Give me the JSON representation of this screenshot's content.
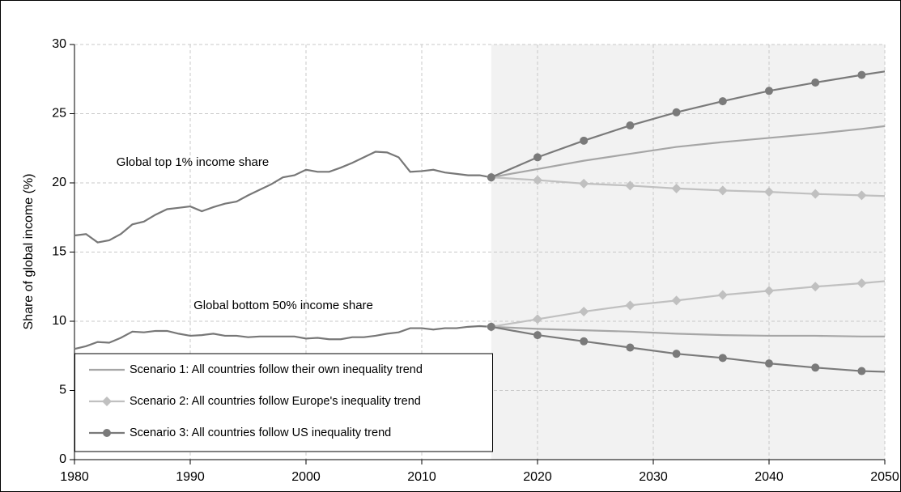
{
  "chart_data": {
    "type": "line",
    "ylabel": "Share of global income (%)",
    "annotations": [
      "Global top 1% income share",
      "Global bottom 50% income share"
    ],
    "xlim": [
      1980,
      2050
    ],
    "xticks": [
      1980,
      1990,
      2000,
      2010,
      2020,
      2030,
      2040,
      2050
    ],
    "ylim": [
      0,
      30
    ],
    "yticks": [
      0,
      5,
      10,
      15,
      20,
      25,
      30
    ],
    "grid": true,
    "legend": "lower left",
    "marker_step": 4,
    "shade_color": "#f2f2f2",
    "series": [
      {
        "color": "#777777",
        "marker": "none",
        "x": [
          1980,
          1981,
          1982,
          1983,
          1984,
          1985,
          1986,
          1987,
          1988,
          1989,
          1990,
          1991,
          1992,
          1993,
          1994,
          1995,
          1996,
          1997,
          1998,
          1999,
          2000,
          2001,
          2002,
          2003,
          2004,
          2005,
          2006,
          2007,
          2008,
          2009,
          2010,
          2011,
          2012,
          2013,
          2014,
          2015,
          2016
        ],
        "top": [
          16.2,
          16.3,
          15.7,
          15.85,
          16.3,
          17.0,
          17.2,
          17.7,
          18.1,
          18.2,
          18.3,
          17.95,
          18.25,
          18.5,
          18.65,
          19.1,
          19.5,
          19.9,
          20.4,
          20.55,
          20.95,
          20.8,
          20.8,
          21.1,
          21.45,
          21.85,
          22.25,
          22.2,
          21.85,
          20.8,
          20.85,
          20.95,
          20.75,
          20.65,
          20.55,
          20.55,
          20.4
        ],
        "bottom": [
          8.0,
          8.2,
          8.5,
          8.45,
          8.8,
          9.25,
          9.2,
          9.3,
          9.3,
          9.1,
          8.95,
          9.0,
          9.1,
          8.95,
          8.95,
          8.85,
          8.9,
          8.9,
          8.9,
          8.9,
          8.75,
          8.8,
          8.7,
          8.7,
          8.85,
          8.85,
          8.95,
          9.1,
          9.2,
          9.5,
          9.5,
          9.4,
          9.5,
          9.5,
          9.6,
          9.65,
          9.6
        ]
      },
      {
        "name": "Scenario 1: All countries follow their own inequality trend",
        "color": "#a6a6a6",
        "marker": "none",
        "x": [
          2016,
          2020,
          2024,
          2028,
          2032,
          2036,
          2040,
          2044,
          2048,
          2050
        ],
        "top": [
          20.4,
          21.0,
          21.6,
          22.1,
          22.6,
          22.95,
          23.25,
          23.55,
          23.9,
          24.1
        ],
        "bottom": [
          9.6,
          9.45,
          9.35,
          9.25,
          9.1,
          9.0,
          8.95,
          8.95,
          8.9,
          8.9
        ]
      },
      {
        "name": "Scenario 2: All countries follow Europe's inequality trend",
        "color": "#c0c0c0",
        "marker": "diamond",
        "x": [
          2016,
          2020,
          2024,
          2028,
          2032,
          2036,
          2040,
          2044,
          2048,
          2050
        ],
        "top": [
          20.4,
          20.2,
          19.95,
          19.8,
          19.6,
          19.45,
          19.35,
          19.2,
          19.1,
          19.05
        ],
        "bottom": [
          9.6,
          10.15,
          10.7,
          11.15,
          11.5,
          11.9,
          12.2,
          12.5,
          12.75,
          12.9
        ]
      },
      {
        "name": "Scenario 3: All countries follow US inequality trend",
        "color": "#7a7a7a",
        "marker": "circle",
        "x": [
          2016,
          2020,
          2024,
          2028,
          2032,
          2036,
          2040,
          2044,
          2048,
          2050
        ],
        "top": [
          20.4,
          21.85,
          23.05,
          24.15,
          25.1,
          25.9,
          26.65,
          27.25,
          27.8,
          28.05
        ],
        "bottom": [
          9.6,
          9.0,
          8.55,
          8.1,
          7.65,
          7.35,
          6.95,
          6.65,
          6.4,
          6.35
        ]
      }
    ]
  }
}
